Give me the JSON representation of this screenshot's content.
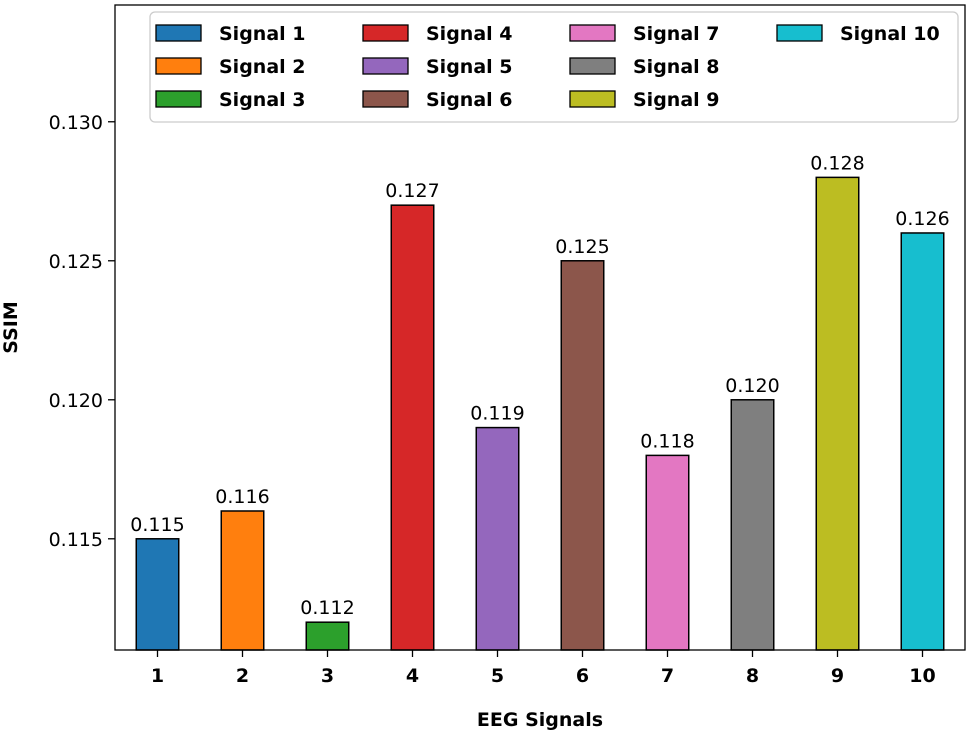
{
  "chart_data": {
    "type": "bar",
    "title": "",
    "xlabel": "EEG Signals",
    "ylabel": "SSIM",
    "categories": [
      "1",
      "2",
      "3",
      "4",
      "5",
      "6",
      "7",
      "8",
      "9",
      "10"
    ],
    "values": [
      0.115,
      0.116,
      0.112,
      0.127,
      0.119,
      0.125,
      0.118,
      0.12,
      0.128,
      0.126
    ],
    "value_labels": [
      "0.115",
      "0.116",
      "0.112",
      "0.127",
      "0.119",
      "0.125",
      "0.118",
      "0.120",
      "0.128",
      "0.126"
    ],
    "series_names": [
      "Signal 1",
      "Signal 2",
      "Signal 3",
      "Signal 4",
      "Signal 5",
      "Signal 6",
      "Signal 7",
      "Signal 8",
      "Signal 9",
      "Signal 10"
    ],
    "colors": [
      "#1f77b4",
      "#ff7f0e",
      "#2ca02c",
      "#d62728",
      "#9467bd",
      "#8c564b",
      "#e377c2",
      "#7f7f7f",
      "#bcbd22",
      "#17becf"
    ],
    "ylim": [
      0.111,
      0.1342
    ],
    "yticks": [
      0.115,
      0.12,
      0.125,
      0.13
    ],
    "ytick_labels": [
      "0.115",
      "0.120",
      "0.125",
      "0.130"
    ],
    "grid": false,
    "legend": {
      "position": "top",
      "columns": 4
    }
  }
}
